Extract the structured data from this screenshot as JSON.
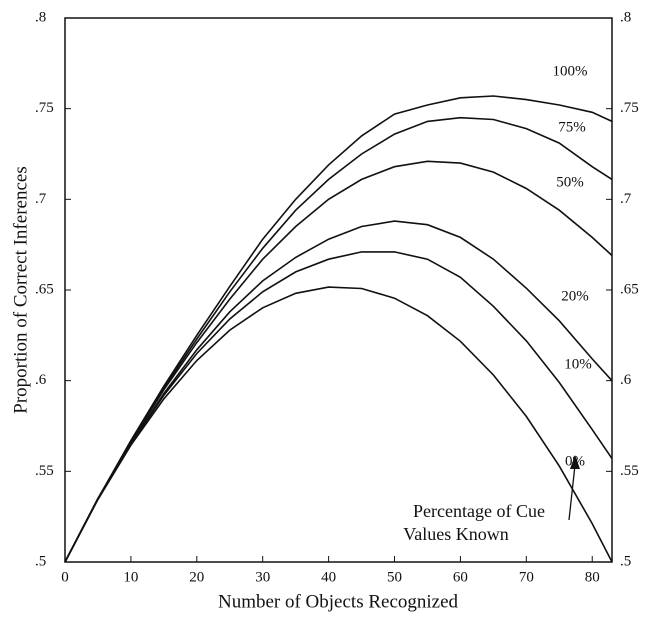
{
  "chart_data": {
    "type": "line",
    "xlabel": "Number of Objects Recognized",
    "ylabel": "Proportion of Correct Inferences",
    "annotation": [
      "Percentage of Cue",
      "Values Known"
    ],
    "x": [
      0,
      5,
      10,
      15,
      20,
      25,
      30,
      35,
      40,
      45,
      50,
      55,
      60,
      65,
      70,
      75,
      80,
      83
    ],
    "xlim": [
      0,
      83
    ],
    "xticks": [
      0,
      10,
      20,
      30,
      40,
      50,
      60,
      70,
      80
    ],
    "ylim": [
      0.5,
      0.8
    ],
    "yticks": [
      {
        "value": 0.5,
        "label": ".5"
      },
      {
        "value": 0.55,
        "label": ".55"
      },
      {
        "value": 0.6,
        "label": ".6"
      },
      {
        "value": 0.65,
        "label": ".65"
      },
      {
        "value": 0.7,
        "label": ".7"
      },
      {
        "value": 0.75,
        "label": ".75"
      },
      {
        "value": 0.8,
        "label": ".8"
      }
    ],
    "series": [
      {
        "name": "100%",
        "color": "#111111",
        "values": [
          0.5,
          0.535,
          0.567,
          0.597,
          0.625,
          0.652,
          0.678,
          0.7,
          0.719,
          0.735,
          0.747,
          0.752,
          0.756,
          0.757,
          0.755,
          0.752,
          0.748,
          0.743
        ]
      },
      {
        "name": "75%",
        "color": "#111111",
        "values": [
          0.5,
          0.535,
          0.566,
          0.596,
          0.623,
          0.649,
          0.673,
          0.694,
          0.711,
          0.725,
          0.736,
          0.743,
          0.745,
          0.744,
          0.739,
          0.731,
          0.718,
          0.711
        ]
      },
      {
        "name": "50%",
        "color": "#111111",
        "values": [
          0.5,
          0.535,
          0.566,
          0.595,
          0.621,
          0.645,
          0.667,
          0.685,
          0.7,
          0.711,
          0.718,
          0.721,
          0.72,
          0.715,
          0.706,
          0.694,
          0.679,
          0.669
        ]
      },
      {
        "name": "20%",
        "color": "#111111",
        "values": [
          0.5,
          0.535,
          0.565,
          0.593,
          0.617,
          0.638,
          0.655,
          0.668,
          0.678,
          0.685,
          0.688,
          0.686,
          0.679,
          0.667,
          0.651,
          0.633,
          0.612,
          0.6
        ]
      },
      {
        "name": "10%",
        "color": "#111111",
        "values": [
          0.5,
          0.535,
          0.565,
          0.592,
          0.615,
          0.634,
          0.649,
          0.66,
          0.667,
          0.671,
          0.671,
          0.667,
          0.657,
          0.641,
          0.622,
          0.599,
          0.573,
          0.557
        ]
      },
      {
        "name": "0%",
        "color": "#111111",
        "values": [
          0.5,
          0.5345,
          0.5644,
          0.59,
          0.6111,
          0.6279,
          0.6402,
          0.6482,
          0.6516,
          0.6508,
          0.6455,
          0.6358,
          0.6217,
          0.6031,
          0.5803,
          0.5529,
          0.5212,
          0.5
        ]
      }
    ],
    "grid": false
  }
}
